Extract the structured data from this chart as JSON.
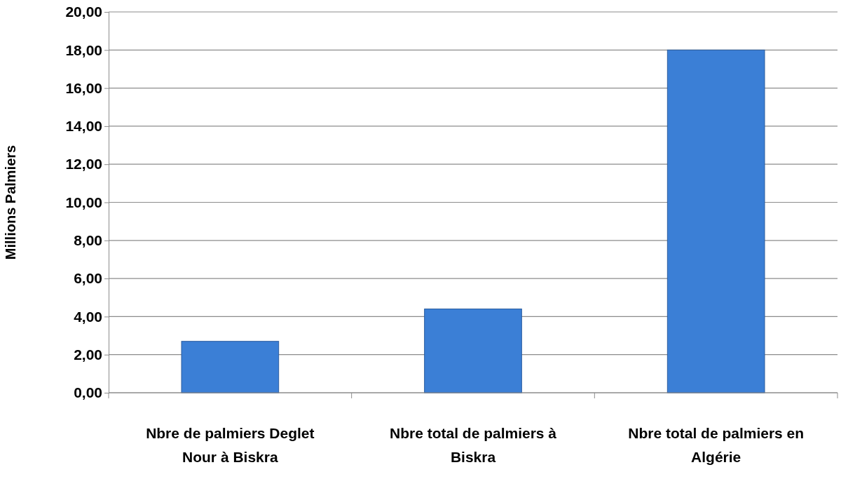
{
  "chart_data": {
    "type": "bar",
    "ylabel": "Millions Palmiers",
    "categories": [
      "Nbre de palmiers Deglet Nour à Biskra",
      "Nbre total de palmiers à Biskra",
      "Nbre total de palmiers en Algérie"
    ],
    "values": [
      2.7,
      4.4,
      18.0
    ],
    "color": "#3b7fd6",
    "ylim": [
      0,
      20
    ],
    "yticks": [
      {
        "value": 0,
        "label": "0,00"
      },
      {
        "value": 2,
        "label": "2,00"
      },
      {
        "value": 4,
        "label": "4,00"
      },
      {
        "value": 6,
        "label": "6,00"
      },
      {
        "value": 8,
        "label": "8,00"
      },
      {
        "value": 10,
        "label": "10,00"
      },
      {
        "value": 12,
        "label": "12,00"
      },
      {
        "value": 14,
        "label": "14,00"
      },
      {
        "value": 16,
        "label": "16,00"
      },
      {
        "value": 18,
        "label": "18,00"
      },
      {
        "value": 20,
        "label": "20,00"
      }
    ],
    "grid": "y"
  }
}
